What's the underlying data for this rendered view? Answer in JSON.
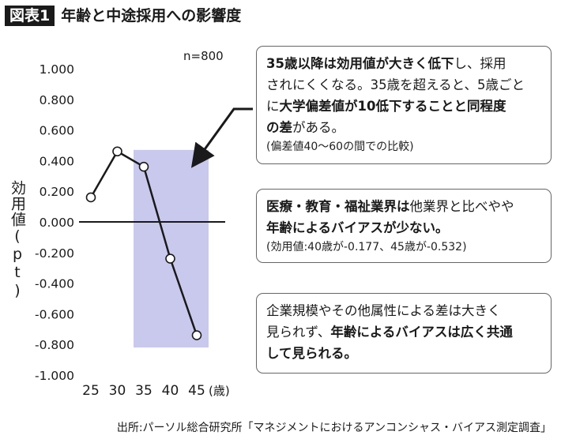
{
  "header": {
    "label": "図表1",
    "title": "年齢と中途採用への影響度"
  },
  "chart_data": {
    "type": "line",
    "x": [
      25,
      30,
      35,
      40,
      45
    ],
    "x_unit": "(歳)",
    "values": [
      0.16,
      0.46,
      0.36,
      -0.24,
      -0.74
    ],
    "yticks": [
      "1.000",
      "0.800",
      "0.600",
      "0.400",
      "0.200",
      "0.000",
      "-0.200",
      "-0.400",
      "-0.600",
      "-0.800",
      "-1.000"
    ],
    "ylabel": "効用値(pt)",
    "ylim": [
      -1.0,
      1.0
    ],
    "n_label": "n=800",
    "highlight_range": [
      35,
      45
    ],
    "highlight_color": "#c9c9ee",
    "line_color": "#1a1a1a",
    "marker_fill": "#ffffff"
  },
  "box1": {
    "line1_bold": "35歳以降は効用値が大きく低下",
    "line1_rest": "し、採用",
    "line2": "されにくくなる。35歳を超えると、5歳ごと",
    "line3_pre": "に",
    "line3_bold": "大学偏差値が10低下することと同程度",
    "line4_bold": "の差",
    "line4_rest": "がある。",
    "note": "(偏差値40〜60の間での比較)"
  },
  "box2": {
    "line1_bold": "医療・教育・福祉業界は",
    "line1_rest": "他業界と比べやや",
    "line2_bold": "年齢によるバイアスが少ない。",
    "note": "(効用値:40歳が-0.177、45歳が-0.532)"
  },
  "box3": {
    "line1": "企業規模やその他属性による差は大きく",
    "line2_pre": "見られず、",
    "line2_bold": "年齢によるバイアスは広く共通",
    "line3_bold": "して見られる。"
  },
  "source": "出所:パーソル総合研究所「マネジメントにおけるアンコンシャス・バイアス測定調査」"
}
